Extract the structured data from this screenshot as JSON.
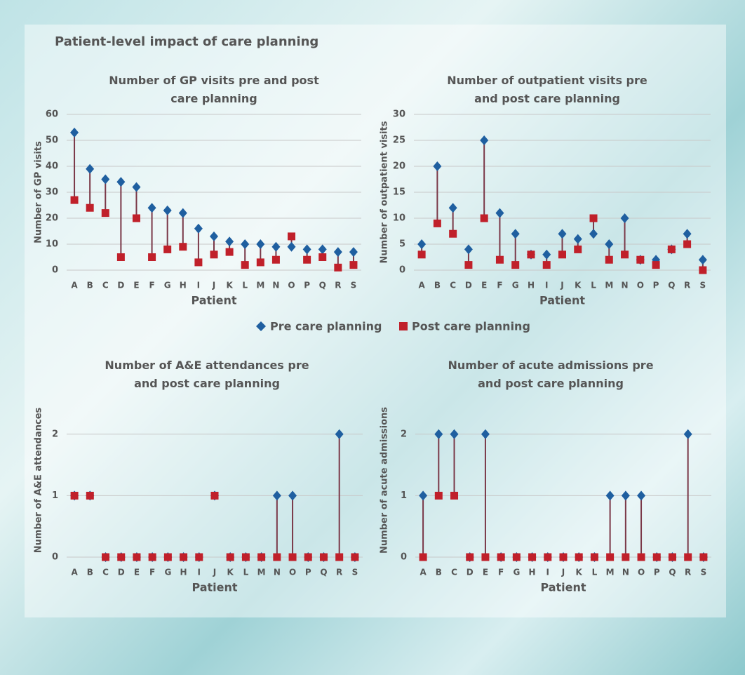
{
  "title": "Patient-level impact of care planning",
  "chart_data": [
    {
      "type": "dumbbell",
      "title": "Number of GP visits pre and post care planning",
      "x_label": "Patient",
      "y_label": "Number of GP visits",
      "categories": [
        "A",
        "B",
        "C",
        "D",
        "E",
        "F",
        "G",
        "H",
        "I",
        "J",
        "K",
        "L",
        "M",
        "N",
        "O",
        "P",
        "Q",
        "R",
        "S"
      ],
      "series": [
        {
          "name": "Pre care planning",
          "color": "#1f5fa0",
          "marker": "diamond",
          "values": [
            53,
            39,
            35,
            34,
            32,
            24,
            23,
            22,
            16,
            13,
            11,
            10,
            10,
            9,
            9,
            8,
            8,
            7,
            7
          ]
        },
        {
          "name": "Post care planning",
          "color": "#c0202a",
          "marker": "square",
          "values": [
            27,
            24,
            22,
            5,
            20,
            5,
            8,
            9,
            3,
            6,
            7,
            2,
            3,
            4,
            13,
            4,
            5,
            1,
            2
          ]
        }
      ],
      "ylim": [
        0,
        60
      ],
      "yticks": [
        0,
        10,
        20,
        30,
        40,
        50,
        60
      ],
      "grid": true
    },
    {
      "type": "dumbbell",
      "title": "Number of outpatient visits pre and post care planning",
      "x_label": "Patient",
      "y_label": "Number of outpatient visits",
      "categories": [
        "A",
        "B",
        "C",
        "D",
        "E",
        "F",
        "G",
        "H",
        "I",
        "J",
        "K",
        "L",
        "M",
        "N",
        "O",
        "P",
        "Q",
        "R",
        "S"
      ],
      "series": [
        {
          "name": "Pre care planning",
          "color": "#1f5fa0",
          "marker": "diamond",
          "values": [
            5,
            20,
            12,
            4,
            25,
            11,
            7,
            3,
            3,
            7,
            6,
            7,
            5,
            10,
            2,
            2,
            4,
            7,
            2
          ]
        },
        {
          "name": "Post care planning",
          "color": "#c0202a",
          "marker": "square",
          "values": [
            3,
            9,
            7,
            1,
            10,
            2,
            1,
            3,
            1,
            3,
            4,
            10,
            2,
            3,
            2,
            1,
            4,
            5,
            0
          ]
        }
      ],
      "ylim": [
        0,
        30
      ],
      "yticks": [
        0,
        5,
        10,
        15,
        20,
        25,
        30
      ],
      "grid": true
    },
    {
      "type": "dumbbell",
      "title": "Number of A&E attendances pre and post care planning",
      "x_label": "Patient",
      "y_label": "Number of A&E attendances",
      "categories": [
        "A",
        "B",
        "C",
        "D",
        "E",
        "F",
        "G",
        "H",
        "I",
        "J",
        "K",
        "L",
        "M",
        "N",
        "O",
        "P",
        "Q",
        "R",
        "S"
      ],
      "series": [
        {
          "name": "Pre care planning",
          "color": "#1f5fa0",
          "marker": "diamond",
          "values": [
            1,
            1,
            0,
            0,
            0,
            0,
            0,
            0,
            0,
            1,
            0,
            0,
            0,
            1,
            1,
            0,
            0,
            2,
            0
          ]
        },
        {
          "name": "Post care planning",
          "color": "#c0202a",
          "marker": "square",
          "values": [
            1,
            1,
            0,
            0,
            0,
            0,
            0,
            0,
            0,
            1,
            0,
            0,
            0,
            0,
            0,
            0,
            0,
            0,
            0
          ]
        }
      ],
      "ylim": [
        0,
        2.5
      ],
      "yticks": [
        0,
        1,
        2
      ],
      "grid": true
    },
    {
      "type": "dumbbell",
      "title": "Number of acute admissions pre and post care planning",
      "x_label": "Patient",
      "y_label": "Number of acute admissions",
      "categories": [
        "A",
        "B",
        "C",
        "D",
        "E",
        "F",
        "G",
        "H",
        "I",
        "J",
        "K",
        "L",
        "M",
        "N",
        "O",
        "P",
        "Q",
        "R",
        "S"
      ],
      "series": [
        {
          "name": "Pre care planning",
          "color": "#1f5fa0",
          "marker": "diamond",
          "values": [
            1,
            2,
            2,
            0,
            2,
            0,
            0,
            0,
            0,
            0,
            0,
            0,
            1,
            1,
            1,
            0,
            0,
            2,
            0
          ]
        },
        {
          "name": "Post care planning",
          "color": "#c0202a",
          "marker": "square",
          "values": [
            0,
            1,
            1,
            0,
            0,
            0,
            0,
            0,
            0,
            0,
            0,
            0,
            0,
            0,
            0,
            0,
            0,
            0,
            0
          ]
        }
      ],
      "ylim": [
        0,
        2.5
      ],
      "yticks": [
        0,
        1,
        2
      ],
      "grid": true
    }
  ]
}
